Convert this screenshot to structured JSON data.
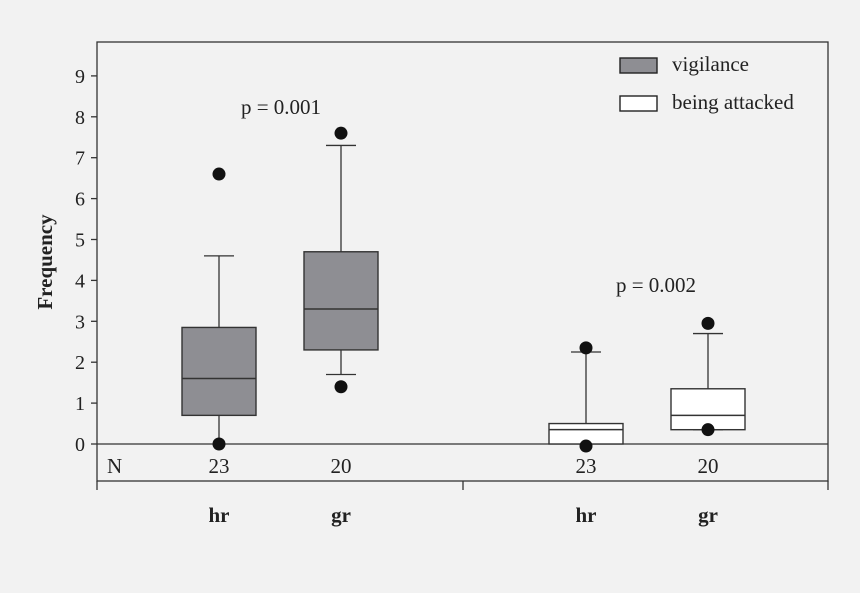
{
  "chart_data": {
    "type": "boxplot",
    "ylabel": "Frequency",
    "ylim": [
      0,
      10
    ],
    "yticks": [
      0,
      1,
      2,
      3,
      4,
      5,
      6,
      7,
      8,
      9
    ],
    "n_row_label": "N",
    "legend": [
      {
        "name": "vigilance",
        "color": "#8e8e93"
      },
      {
        "name": "being attacked",
        "color": "#ffffff"
      }
    ],
    "groups": [
      {
        "series": "vigilance",
        "annotation": "p = 0.001",
        "boxes": [
          {
            "category": "hr",
            "n": "23",
            "whisker_low": 0,
            "q1": 0.7,
            "median": 1.6,
            "q3": 2.85,
            "whisker_high": 4.6,
            "outliers": [
              6.6,
              0
            ]
          },
          {
            "category": "gr",
            "n": "20",
            "whisker_low": 1.7,
            "q1": 2.3,
            "median": 3.3,
            "q3": 4.7,
            "whisker_high": 7.3,
            "outliers": [
              7.6,
              1.4
            ]
          }
        ]
      },
      {
        "series": "being attacked",
        "annotation": "p = 0.002",
        "boxes": [
          {
            "category": "hr",
            "n": "23",
            "whisker_low": 0,
            "q1": 0,
            "median": 0.35,
            "q3": 0.5,
            "whisker_high": 2.25,
            "outliers": [
              2.35,
              -0.05
            ]
          },
          {
            "category": "gr",
            "n": "20",
            "whisker_low": 0.35,
            "q1": 0.35,
            "median": 0.7,
            "q3": 1.35,
            "whisker_high": 2.7,
            "outliers": [
              2.95,
              0.35
            ]
          }
        ]
      }
    ]
  }
}
